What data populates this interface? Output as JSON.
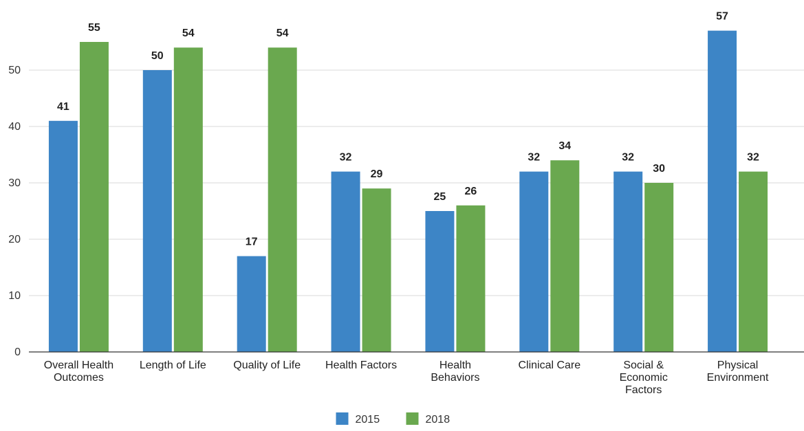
{
  "chart_data": {
    "type": "bar",
    "categories": [
      [
        "Overall Health",
        "Outcomes"
      ],
      [
        "Length of Life"
      ],
      [
        "Quality of Life"
      ],
      [
        "Health Factors"
      ],
      [
        "Health",
        "Behaviors"
      ],
      [
        "Clinical Care"
      ],
      [
        "Social &",
        "Economic",
        "Factors"
      ],
      [
        "Physical",
        "Environment"
      ]
    ],
    "series": [
      {
        "name": "2015",
        "color": "#3d85c6",
        "values": [
          41,
          50,
          17,
          32,
          25,
          32,
          32,
          57
        ]
      },
      {
        "name": "2018",
        "color": "#6aa84f",
        "values": [
          55,
          54,
          54,
          29,
          26,
          34,
          30,
          32
        ]
      }
    ],
    "yticks": [
      "0",
      "10",
      "20",
      "30",
      "40",
      "50"
    ],
    "ylim": [
      0,
      60
    ],
    "grid": true,
    "legend_position": "bottom-center",
    "data_labels": true
  }
}
